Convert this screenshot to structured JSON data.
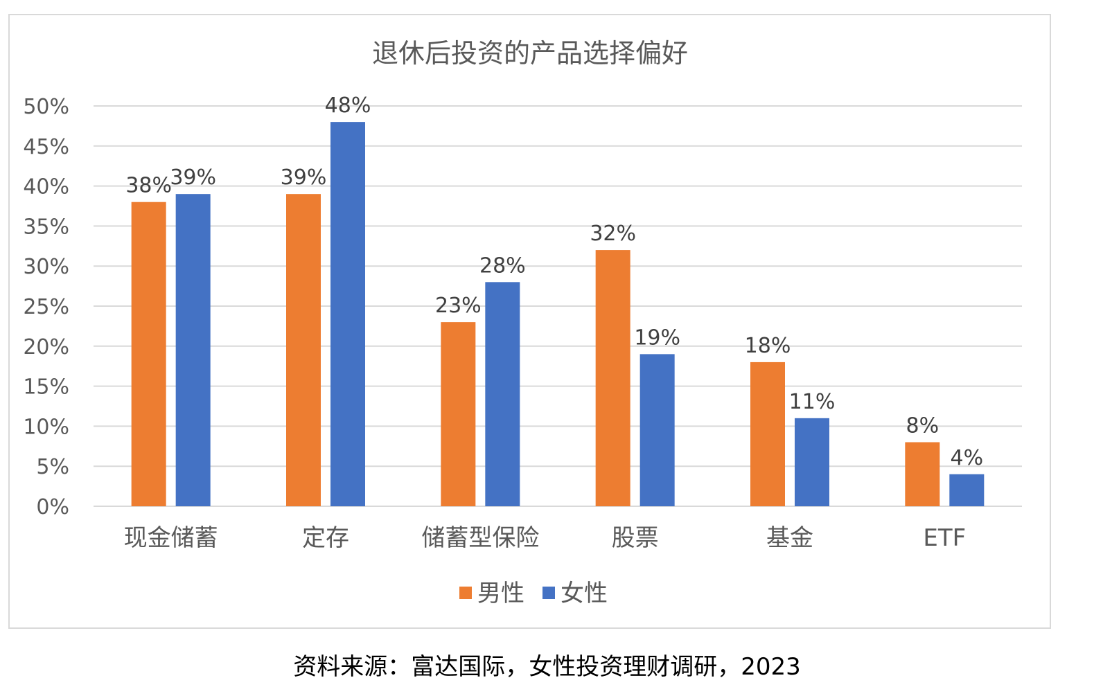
{
  "chart_data": {
    "type": "bar",
    "title": "退休后投资的产品选择偏好",
    "categories": [
      "现金储蓄",
      "定存",
      "储蓄型保险",
      "股票",
      "基金",
      "ETF"
    ],
    "series": [
      {
        "name": "男性",
        "values": [
          38,
          39,
          23,
          32,
          18,
          8
        ],
        "labels": [
          "38%",
          "39%",
          "23%",
          "32%",
          "18%",
          "8%"
        ],
        "color": "#ed7d31"
      },
      {
        "name": "女性",
        "values": [
          39,
          48,
          28,
          19,
          11,
          4
        ],
        "labels": [
          "39%",
          "48%",
          "28%",
          "19%",
          "11%",
          "4%"
        ],
        "color": "#4472c4"
      }
    ],
    "ylim": [
      0,
      50
    ],
    "yticks": [
      "0%",
      "5%",
      "10%",
      "15%",
      "20%",
      "25%",
      "30%",
      "35%",
      "40%",
      "45%",
      "50%"
    ],
    "grid": true,
    "legend": "bottom",
    "gridColor": "#d9d9d9"
  },
  "source": "资料来源：富达国际，女性投资理财调研，2023"
}
